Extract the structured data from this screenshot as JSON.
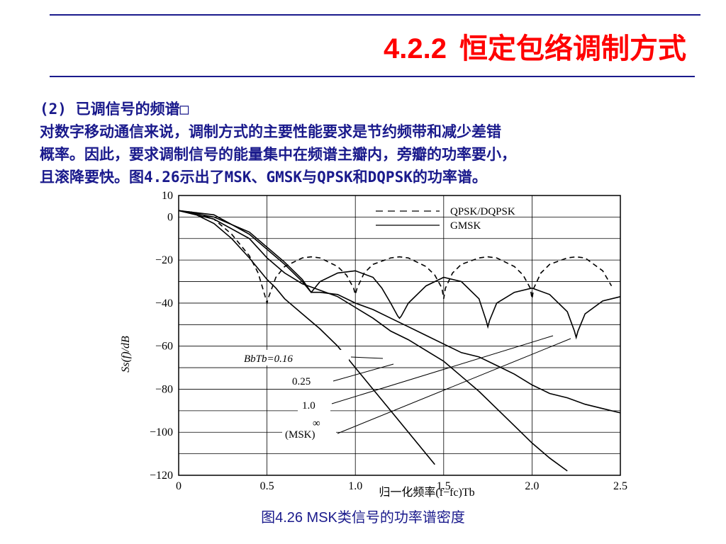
{
  "slide": {
    "title_number": "4.2.2",
    "title_text": "恒定包络调制方式",
    "heading": "(2) 已调信号的频谱□",
    "body_lines": [
      "对数字移动通信来说，调制方式的主要性能要求是节约频带和减少差错",
      "概率。因此，要求调制信号的能量集中在频谱主瓣内，旁瓣的功率要小，",
      "且滚降要快。图4.26示出了MSK、GMSK与QPSK和DQPSK的功率谱。"
    ],
    "caption": "图4.26   MSK类信号的功率谱密度"
  },
  "chart_data": {
    "type": "line",
    "xlabel": "归一化频率(f−fc)Tb",
    "ylabel": "Ss(f)/dB",
    "xlim": [
      0,
      2.5
    ],
    "ylim": [
      -120,
      10
    ],
    "x_ticks": [
      "0",
      "0.5",
      "1.0",
      "1.5",
      "2.0",
      "2.5"
    ],
    "y_ticks": [
      "10",
      "0",
      "−20",
      "−40",
      "−60",
      "−80",
      "−100",
      "−120"
    ],
    "y_tick_values": [
      10,
      0,
      -20,
      -40,
      -60,
      -80,
      -100,
      -120
    ],
    "grid": true,
    "legend": [
      {
        "label": "QPSK/DQPSK",
        "style": "dashed"
      },
      {
        "label": "GMSK",
        "style": "solid"
      }
    ],
    "annotations": [
      "BbTb=0.16",
      "0.25",
      "1.0",
      "∞",
      "(MSK)"
    ],
    "series": [
      {
        "name": "QPSK/DQPSK",
        "style": "dashed",
        "x": [
          0.0,
          0.1,
          0.2,
          0.3,
          0.4,
          0.45,
          0.49,
          0.5,
          0.51,
          0.55,
          0.6,
          0.7,
          0.75,
          0.8,
          0.9,
          0.95,
          0.99,
          1.0,
          1.01,
          1.05,
          1.1,
          1.2,
          1.25,
          1.3,
          1.4,
          1.45,
          1.49,
          1.5,
          1.51,
          1.55,
          1.6,
          1.7,
          1.75,
          1.8,
          1.9,
          1.95,
          1.99,
          2.0,
          2.01,
          2.05,
          2.1,
          2.2,
          2.25,
          2.3,
          2.4,
          2.45
        ],
        "y": [
          3,
          2,
          -1,
          -8,
          -18,
          -26,
          -37,
          -40,
          -37,
          -28,
          -23,
          -19,
          -18.5,
          -19,
          -23,
          -27,
          -33,
          -36,
          -33,
          -26,
          -22,
          -19,
          -18.5,
          -19,
          -23,
          -27,
          -33,
          -38,
          -33,
          -26,
          -22,
          -19,
          -18.5,
          -19,
          -23,
          -27,
          -33,
          -38,
          -33,
          -26,
          -22,
          -19,
          -18.5,
          -19,
          -25,
          -32
        ]
      },
      {
        "name": "MSK",
        "style": "solid",
        "x": [
          0.0,
          0.2,
          0.4,
          0.6,
          0.7,
          0.74,
          0.75,
          0.76,
          0.8,
          0.9,
          1.0,
          1.1,
          1.15,
          1.2,
          1.24,
          1.25,
          1.26,
          1.3,
          1.4,
          1.5,
          1.6,
          1.7,
          1.74,
          1.75,
          1.76,
          1.8,
          1.9,
          2.0,
          2.1,
          2.2,
          2.24,
          2.25,
          2.26,
          2.3,
          2.4,
          2.5
        ],
        "y": [
          3,
          1,
          -8,
          -22,
          -30,
          -34,
          -35,
          -34,
          -30,
          -26,
          -25,
          -28,
          -33,
          -40,
          -46,
          -47,
          -46,
          -40,
          -32,
          -28,
          -30,
          -38,
          -48,
          -51,
          -48,
          -40,
          -35,
          -33,
          -36,
          -44,
          -53,
          -56,
          -53,
          -45,
          -39,
          -37
        ]
      },
      {
        "name": "BbTb=1.0",
        "style": "solid",
        "x": [
          0.0,
          0.2,
          0.4,
          0.6,
          0.7,
          0.75,
          0.8,
          0.9,
          1.0,
          1.1,
          1.2,
          1.3,
          1.4,
          1.5,
          1.6,
          1.7,
          1.8,
          1.9,
          2.0,
          2.1,
          2.2,
          2.3,
          2.4,
          2.5
        ],
        "y": [
          3,
          0,
          -7,
          -21,
          -29,
          -35,
          -35,
          -36,
          -40,
          -43,
          -47,
          -51,
          -55,
          -59,
          -63,
          -65,
          -69,
          -73,
          -78,
          -82,
          -84,
          -87,
          -89,
          -91
        ]
      },
      {
        "name": "BbTb=0.25",
        "style": "solid",
        "x": [
          0.0,
          0.2,
          0.4,
          0.5,
          0.6,
          0.7,
          0.8,
          0.9,
          1.0,
          1.1,
          1.2,
          1.3,
          1.4,
          1.5,
          1.6,
          1.7,
          1.8,
          1.9,
          2.0,
          2.1,
          2.2
        ],
        "y": [
          3,
          -1,
          -10,
          -19,
          -26,
          -31,
          -34,
          -37,
          -42,
          -47,
          -53,
          -57,
          -62,
          -67,
          -74,
          -81,
          -89,
          -97,
          -105,
          -112,
          -118
        ]
      },
      {
        "name": "BbTb=0.16",
        "style": "solid",
        "x": [
          0.0,
          0.1,
          0.2,
          0.3,
          0.4,
          0.5,
          0.55,
          0.6,
          0.7,
          0.8,
          0.9,
          1.0,
          1.1,
          1.2,
          1.3,
          1.4,
          1.45
        ],
        "y": [
          3,
          1,
          -3,
          -10,
          -19,
          -29,
          -33,
          -38,
          -45,
          -52,
          -60,
          -70,
          -80,
          -90,
          -100,
          -110,
          -115
        ]
      }
    ]
  }
}
